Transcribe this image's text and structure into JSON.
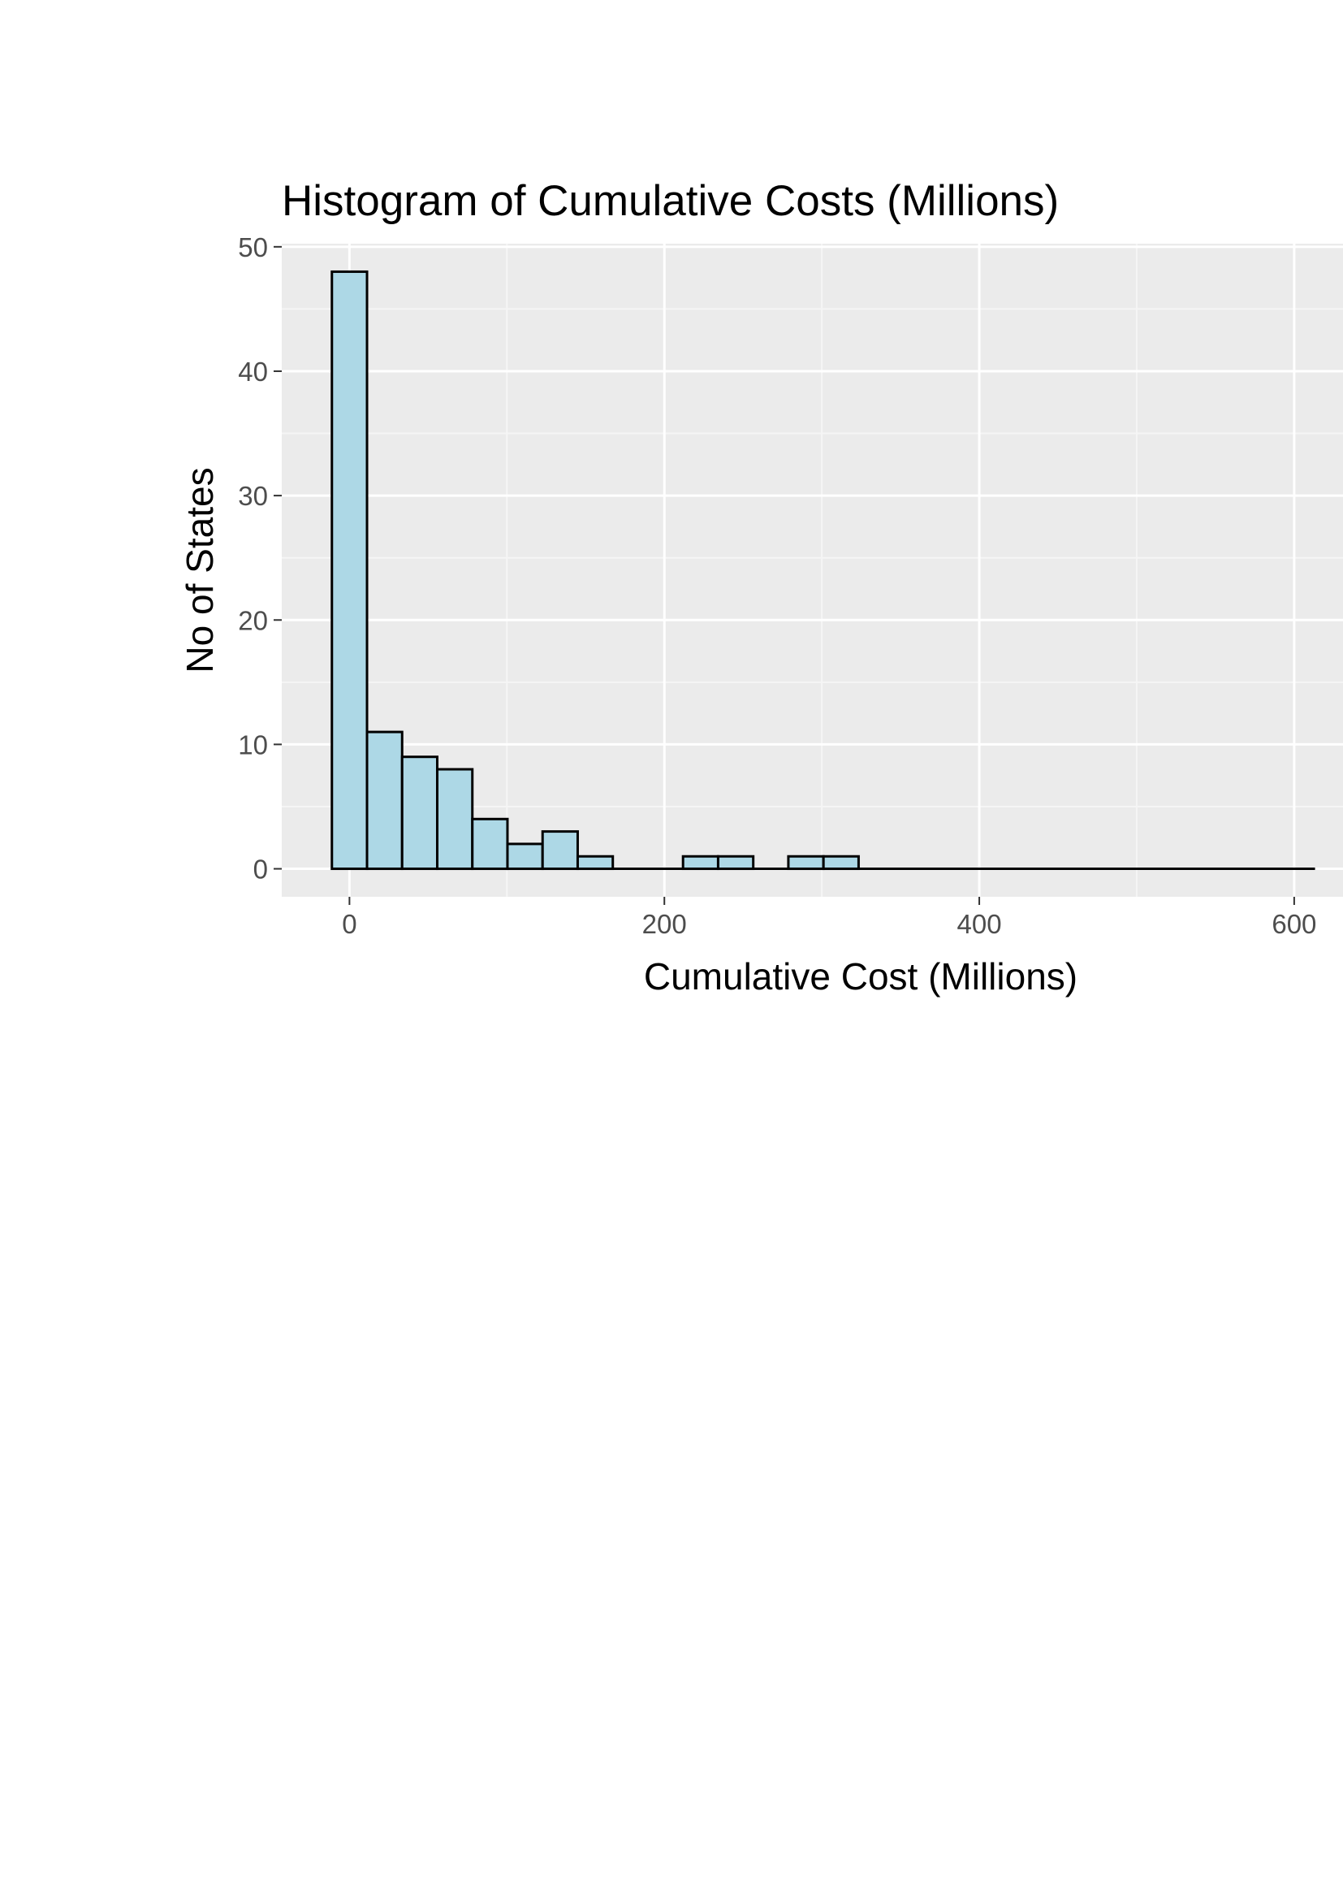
{
  "chart_data": {
    "type": "bar",
    "title": "Histogram of Cumulative Costs (Millions)",
    "xlabel": "Cumulative Cost (Millions)",
    "ylabel": "No of States",
    "bin_width": 22.3,
    "bin_start": -11.15,
    "counts": [
      48,
      11,
      9,
      8,
      4,
      2,
      3,
      1,
      0,
      0,
      1,
      1,
      0,
      1,
      1,
      0,
      0,
      0,
      0,
      0,
      0,
      0,
      0,
      0,
      0,
      0,
      0,
      0
    ],
    "xlim": [
      -43,
      631
    ],
    "ylim": [
      -2.25,
      50.25
    ],
    "x_ticks": [
      0,
      200,
      400,
      600
    ],
    "y_ticks": [
      0,
      10,
      20,
      30,
      40,
      50
    ],
    "x_tick_labels": [
      "0",
      "200",
      "400",
      "600"
    ],
    "y_tick_labels": [
      "0",
      "10",
      "20",
      "30",
      "40",
      "50"
    ],
    "grid": true,
    "legend": "none",
    "colors": {
      "bar_fill": "#add8e6",
      "bar_stroke": "#000000",
      "panel_bg": "#ebebeb",
      "grid_major": "#ffffff",
      "grid_minor": "#f5f5f5",
      "tick_text": "#4d4d4d"
    }
  }
}
